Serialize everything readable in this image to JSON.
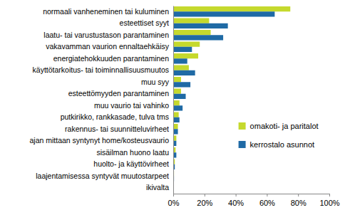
{
  "chart_data": {
    "type": "bar",
    "orientation": "horizontal",
    "grid": false,
    "legend": "right",
    "categories": [
      "normaali vanheneminen tai kuluminen",
      "esteettiset syyt",
      "laatu- tai varustustason parantaminen",
      "vakavamman vaurion ennaltaehkäisy",
      "energiatehokkuuden parantaminen",
      "käyttötarkoitus- tai toiminnallisuusmuutos",
      "muu syy",
      "esteettömyyden parantaminen",
      "muu vaurio tai vahinko",
      "putkirikko, rankkasade, tulva tms",
      "rakennus- tai suunnitteluvirheet",
      "ajan mittaan syntynyt home/kosteusvaurio",
      "sisäilman huono laatu",
      "huolto- ja käyttövirheet",
      "laajentamisessa syntyvät muutostarpeet",
      "ikivalta"
    ],
    "series": [
      {
        "name": "omakoti- ja paritalot",
        "color": "#c5d92d",
        "values": [
          75,
          23,
          24,
          17,
          16,
          10,
          5,
          5,
          4,
          3.5,
          3,
          2,
          1.5,
          1,
          0.5,
          0.2
        ]
      },
      {
        "name": "kerrostalo asunnot",
        "color": "#1f6aa5",
        "values": [
          65,
          35,
          32,
          12,
          9,
          14,
          11,
          8,
          6,
          4,
          3,
          2,
          2,
          1,
          0.5,
          0.2
        ]
      }
    ],
    "xlim": [
      0,
      100
    ],
    "xticks": [
      {
        "value": 0,
        "label": "0%"
      },
      {
        "value": 20,
        "label": "20%"
      },
      {
        "value": 40,
        "label": "40%"
      },
      {
        "value": 60,
        "label": "60%"
      },
      {
        "value": 80,
        "label": "80%"
      },
      {
        "value": 100,
        "label": "100%"
      }
    ]
  }
}
